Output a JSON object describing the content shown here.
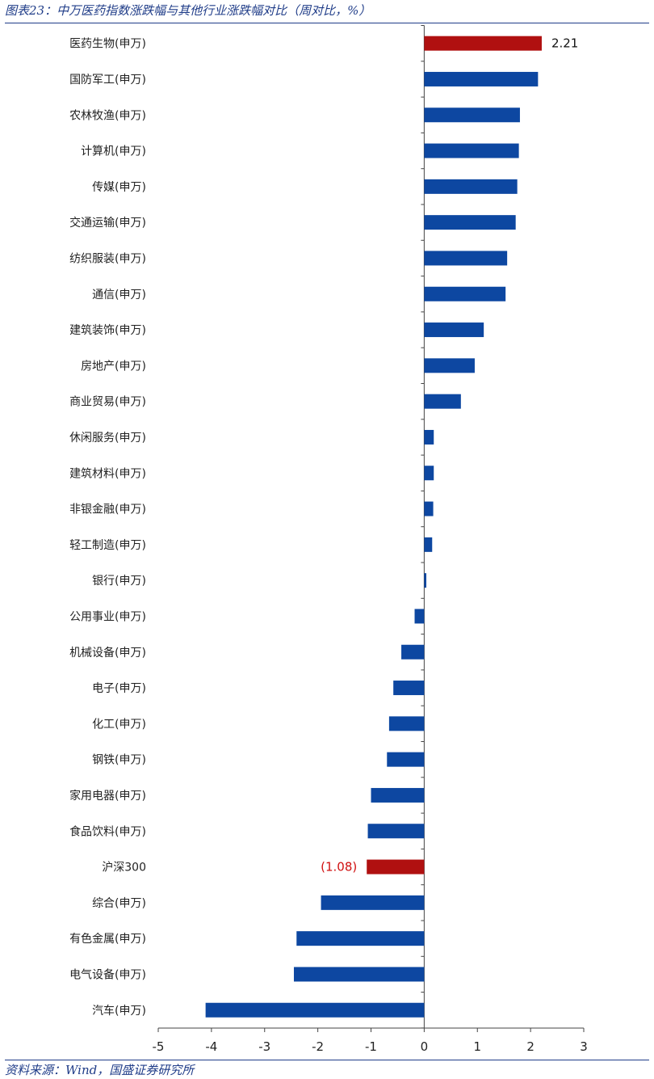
{
  "figure": {
    "title": "图表23：中万医药指数涨跌幅与其他行业涨跌幅对比（周对比，%）",
    "source": "资料来源：Wind，国盛证券研究所"
  },
  "colors": {
    "bar": "#0d47a1",
    "highlight": "#b01010",
    "negative_label": "#d01010",
    "axis": "#444444"
  },
  "chart_data": {
    "type": "bar",
    "orientation": "horizontal",
    "title": "",
    "xlabel": "",
    "ylabel": "",
    "xlim": [
      -5,
      3
    ],
    "xticks": [
      -5,
      -4,
      -3,
      -2,
      -1,
      0,
      1,
      2,
      3
    ],
    "grid": false,
    "categories": [
      "医药生物(申万)",
      "国防军工(申万)",
      "农林牧渔(申万)",
      "计算机(申万)",
      "传媒(申万)",
      "交通运输(申万)",
      "纺织服装(申万)",
      "通信(申万)",
      "建筑装饰(申万)",
      "房地产(申万)",
      "商业贸易(申万)",
      "休闲服务(申万)",
      "建筑材料(申万)",
      "非银金融(申万)",
      "轻工制造(申万)",
      "银行(申万)",
      "公用事业(申万)",
      "机械设备(申万)",
      "电子(申万)",
      "化工(申万)",
      "钢铁(申万)",
      "家用电器(申万)",
      "食品饮料(申万)",
      "沪深300",
      "综合(申万)",
      "有色金属(申万)",
      "电气设备(申万)",
      "汽车(申万)"
    ],
    "values": [
      2.21,
      2.14,
      1.8,
      1.78,
      1.75,
      1.72,
      1.56,
      1.53,
      1.12,
      0.95,
      0.69,
      0.18,
      0.18,
      0.17,
      0.15,
      0.04,
      -0.18,
      -0.43,
      -0.58,
      -0.66,
      -0.7,
      -1.0,
      -1.06,
      -1.08,
      -1.94,
      -2.4,
      -2.45,
      -4.11
    ],
    "highlighted": [
      "医药生物(申万)",
      "沪深300"
    ],
    "data_labels": [
      {
        "category": "医药生物(申万)",
        "text": "2.21"
      },
      {
        "category": "沪深300",
        "text": "(1.08)"
      }
    ]
  }
}
